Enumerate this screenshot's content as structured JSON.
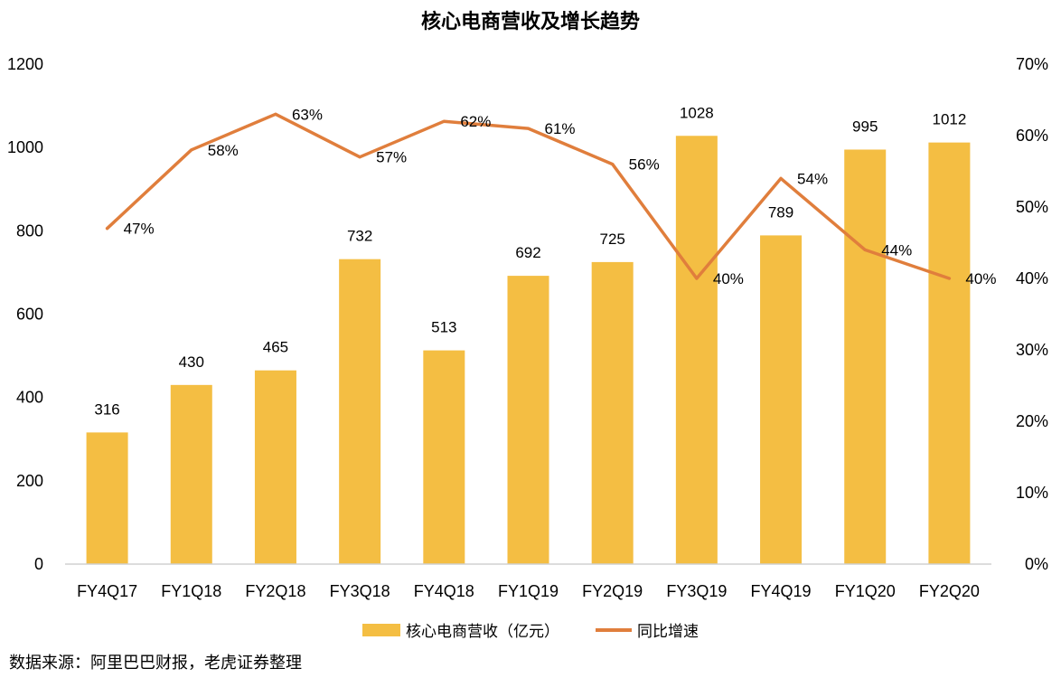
{
  "chart_data": {
    "type": "bar+line",
    "title": "核心电商营收及增长趋势",
    "categories": [
      "FY4Q17",
      "FY1Q18",
      "FY2Q18",
      "FY3Q18",
      "FY4Q18",
      "FY1Q19",
      "FY2Q19",
      "FY3Q19",
      "FY4Q19",
      "FY1Q20",
      "FY2Q20"
    ],
    "series": [
      {
        "name": "核心电商营收（亿元）",
        "type": "bar",
        "axis": "left",
        "color": "#F4BE43",
        "values": [
          316,
          430,
          465,
          732,
          513,
          692,
          725,
          1028,
          789,
          995,
          1012
        ],
        "labels": [
          "316",
          "430",
          "465",
          "732",
          "513",
          "692",
          "725",
          "1028",
          "789",
          "995",
          "1012"
        ]
      },
      {
        "name": "同比增速",
        "type": "line",
        "axis": "right",
        "color": "#E07E3C",
        "values": [
          47,
          58,
          63,
          57,
          62,
          61,
          56,
          40,
          54,
          44,
          40
        ],
        "labels": [
          "47%",
          "58%",
          "63%",
          "57%",
          "62%",
          "61%",
          "56%",
          "40%",
          "54%",
          "44%",
          "40%"
        ]
      }
    ],
    "y_left": {
      "min": 0,
      "max": 1200,
      "ticks": [
        0,
        200,
        400,
        600,
        800,
        1000,
        1200
      ],
      "tick_labels": [
        "0",
        "200",
        "400",
        "600",
        "800",
        "1000",
        "1200"
      ]
    },
    "y_right": {
      "min": 0,
      "max": 70,
      "ticks": [
        0,
        10,
        20,
        30,
        40,
        50,
        60,
        70
      ],
      "tick_labels": [
        "0%",
        "10%",
        "20%",
        "30%",
        "40%",
        "50%",
        "60%",
        "70%"
      ]
    },
    "legend_position": "bottom"
  },
  "legend": {
    "bar_label": "核心电商营收（亿元）",
    "line_label": "同比增速"
  },
  "source": "数据来源：阿里巴巴财报，老虎证券整理"
}
